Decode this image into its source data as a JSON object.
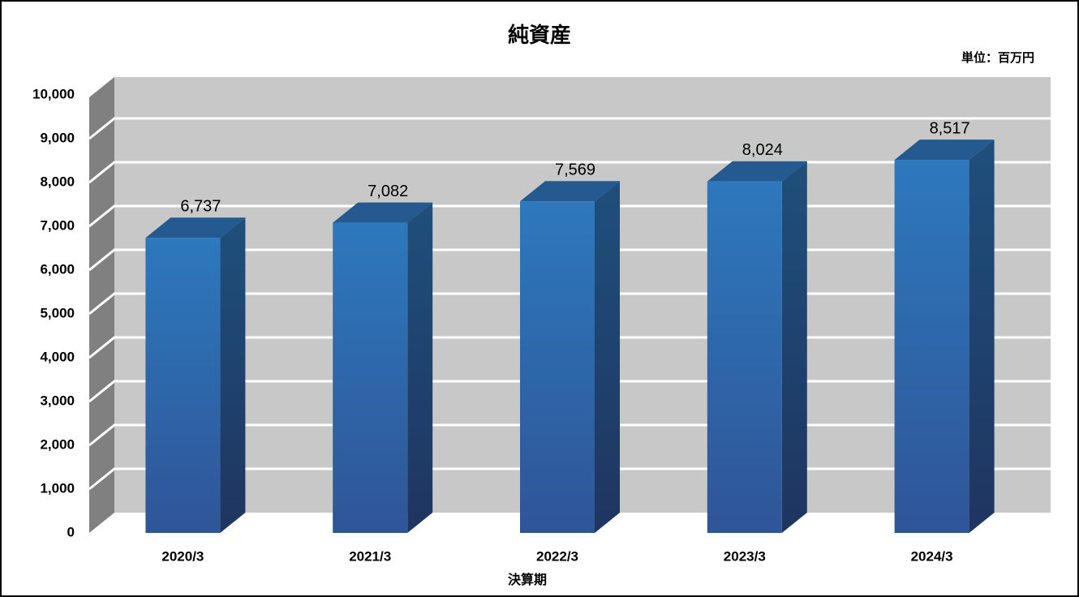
{
  "chart_data": {
    "type": "bar3d",
    "title": "純資産",
    "unit_note": "単位：百万円",
    "x_label": "決算期",
    "categories": [
      "2020/3",
      "2021/3",
      "2022/3",
      "2023/3",
      "2024/3"
    ],
    "values": [
      6737,
      7082,
      7569,
      8024,
      8517
    ],
    "value_labels": [
      "6,737",
      "7,082",
      "7,569",
      "8,024",
      "8,517"
    ],
    "color": "#2e75b6",
    "ylim": [
      0,
      10000
    ],
    "yticks": [
      0,
      {
        "value": 1000,
        "label": "1,000"
      },
      {
        "value": 2000,
        "label": "2,000"
      },
      {
        "value": 3000,
        "label": "3,000"
      },
      {
        "value": 4000,
        "label": "4,000"
      },
      {
        "value": 5000,
        "label": "5,000"
      },
      {
        "value": 6000,
        "label": "6,000"
      },
      {
        "value": 7000,
        "label": "7,000"
      },
      {
        "value": 8000,
        "label": "8,000"
      },
      {
        "value": 9000,
        "label": "9,000"
      },
      {
        "value": 10000,
        "label": "10,000"
      }
    ],
    "grid": true
  }
}
